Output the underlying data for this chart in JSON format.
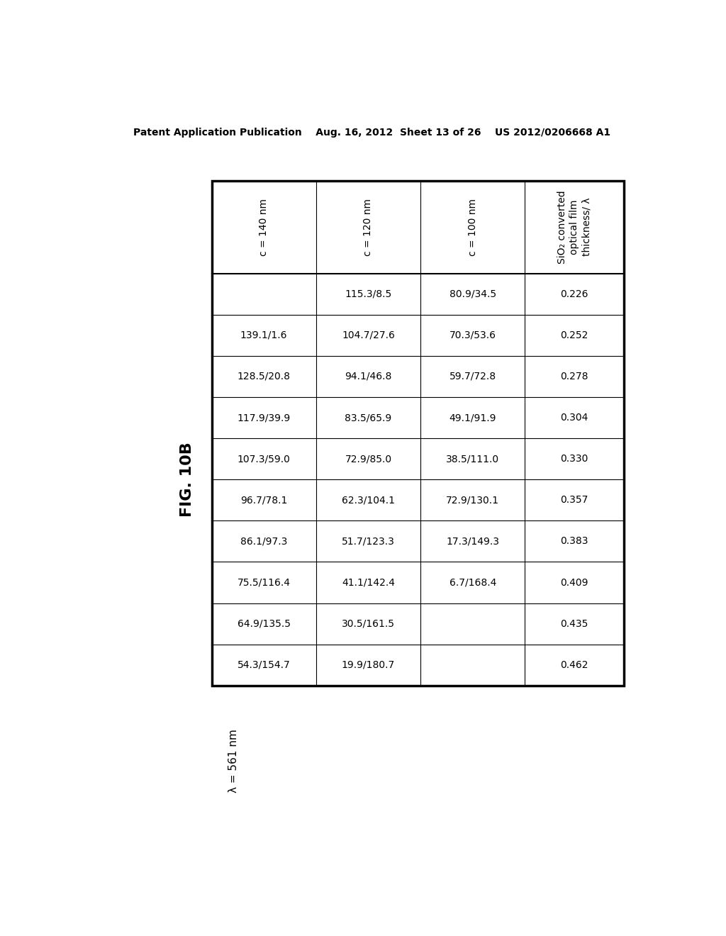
{
  "header_text": "Patent Application Publication    Aug. 16, 2012  Sheet 13 of 26    US 2012/0206668 A1",
  "fig_label": "FIG. 10B",
  "lambda_label": "λ = 561 nm",
  "col_headers": [
    "c = 140 nm",
    "c = 120 nm",
    "c = 100 nm",
    "SiO₂ converted\noptical film\nthickness/ λ"
  ],
  "rows": [
    [
      "",
      "115.3/8.5",
      "80.9/34.5",
      "0.226"
    ],
    [
      "139.1/1.6",
      "104.7/27.6",
      "70.3/53.6",
      "0.252"
    ],
    [
      "128.5/20.8",
      "94.1/46.8",
      "59.7/72.8",
      "0.278"
    ],
    [
      "117.9/39.9",
      "83.5/65.9",
      "49.1/91.9",
      "0.304"
    ],
    [
      "107.3/59.0",
      "72.9/85.0",
      "38.5/111.0",
      "0.330"
    ],
    [
      "96.7/78.1",
      "62.3/104.1",
      "72.9/130.1",
      "0.357"
    ],
    [
      "86.1/97.3",
      "51.7/123.3",
      "17.3/149.3",
      "0.383"
    ],
    [
      "75.5/116.4",
      "41.1/142.4",
      "6.7/168.4",
      "0.409"
    ],
    [
      "64.9/135.5",
      "30.5/161.5",
      "",
      "0.435"
    ],
    [
      "54.3/154.7",
      "19.9/180.7",
      "",
      "0.462"
    ]
  ],
  "background_color": "#ffffff",
  "text_color": "#000000",
  "header_font_size": 10,
  "fig_label_font_size": 16,
  "lambda_font_size": 11,
  "cell_font_size": 10,
  "col_header_font_size": 10
}
